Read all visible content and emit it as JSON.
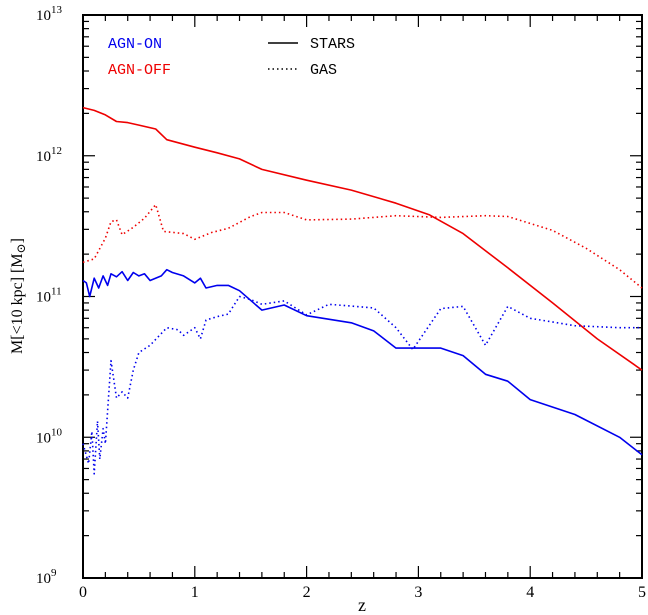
{
  "chart_data": {
    "type": "line",
    "xlabel": "z",
    "ylabel": "M[<10 kpc] [M",
    "ylabel_symbol": "⊙",
    "ylabel_close": "]",
    "xlim": [
      0,
      5
    ],
    "ylim_log10": [
      9,
      13
    ],
    "yscale": "log",
    "x_ticks": [
      "0",
      "1",
      "2",
      "3",
      "4",
      "5"
    ],
    "y_ticks": [
      {
        "exp": 9,
        "base": "10",
        "sup": "9"
      },
      {
        "exp": 10,
        "base": "10",
        "sup": "10"
      },
      {
        "exp": 11,
        "base": "10",
        "sup": "11"
      },
      {
        "exp": 12,
        "base": "10",
        "sup": "12"
      },
      {
        "exp": 13,
        "base": "10",
        "sup": "13"
      }
    ],
    "legend": {
      "placement": "top-left",
      "models": [
        {
          "name": "AGN-ON",
          "color": "#0000ee"
        },
        {
          "name": "AGN-OFF",
          "color": "#ee0000"
        }
      ],
      "styles": [
        {
          "name": "STARS",
          "dash": "solid"
        },
        {
          "name": "GAS",
          "dash": "dotted"
        }
      ]
    },
    "grid": false,
    "series": [
      {
        "model": "AGN-OFF",
        "component": "STARS",
        "color": "#ee0000",
        "dash": "solid",
        "points": [
          [
            0,
            2200000000000.0
          ],
          [
            0.1,
            2100000000000.0
          ],
          [
            0.2,
            1950000000000.0
          ],
          [
            0.3,
            1750000000000.0
          ],
          [
            0.4,
            1720000000000.0
          ],
          [
            0.5,
            1650000000000.0
          ],
          [
            0.65,
            1550000000000.0
          ],
          [
            0.75,
            1300000000000.0
          ],
          [
            1.0,
            1150000000000.0
          ],
          [
            1.2,
            1050000000000.0
          ],
          [
            1.4,
            950000000000.0
          ],
          [
            1.6,
            800000000000.0
          ],
          [
            2.0,
            670000000000.0
          ],
          [
            2.4,
            570000000000.0
          ],
          [
            2.8,
            460000000000.0
          ],
          [
            3.1,
            380000000000.0
          ],
          [
            3.4,
            280000000000.0
          ],
          [
            3.8,
            160000000000.0
          ],
          [
            4.2,
            90000000000.0
          ],
          [
            4.6,
            50000000000.0
          ],
          [
            5.0,
            30000000000.0
          ]
        ]
      },
      {
        "model": "AGN-OFF",
        "component": "GAS",
        "color": "#ee0000",
        "dash": "dotted",
        "points": [
          [
            0,
            175000000000.0
          ],
          [
            0.1,
            185000000000.0
          ],
          [
            0.2,
            260000000000.0
          ],
          [
            0.25,
            340000000000.0
          ],
          [
            0.3,
            350000000000.0
          ],
          [
            0.35,
            275000000000.0
          ],
          [
            0.45,
            310000000000.0
          ],
          [
            0.55,
            360000000000.0
          ],
          [
            0.65,
            450000000000.0
          ],
          [
            0.72,
            290000000000.0
          ],
          [
            0.9,
            280000000000.0
          ],
          [
            1.0,
            255000000000.0
          ],
          [
            1.15,
            285000000000.0
          ],
          [
            1.3,
            305000000000.0
          ],
          [
            1.5,
            370000000000.0
          ],
          [
            1.6,
            395000000000.0
          ],
          [
            1.8,
            395000000000.0
          ],
          [
            2.0,
            350000000000.0
          ],
          [
            2.4,
            355000000000.0
          ],
          [
            2.8,
            375000000000.0
          ],
          [
            3.2,
            365000000000.0
          ],
          [
            3.6,
            375000000000.0
          ],
          [
            3.8,
            370000000000.0
          ],
          [
            4.2,
            295000000000.0
          ],
          [
            4.5,
            220000000000.0
          ],
          [
            4.8,
            155000000000.0
          ],
          [
            5.0,
            115000000000.0
          ]
        ]
      },
      {
        "model": "AGN-ON",
        "component": "STARS",
        "color": "#0000ee",
        "dash": "solid",
        "points": [
          [
            0,
            130000000000.0
          ],
          [
            0.03,
            125000000000.0
          ],
          [
            0.06,
            100000000000.0
          ],
          [
            0.1,
            135000000000.0
          ],
          [
            0.14,
            115000000000.0
          ],
          [
            0.18,
            140000000000.0
          ],
          [
            0.22,
            120000000000.0
          ],
          [
            0.25,
            145000000000.0
          ],
          [
            0.3,
            138000000000.0
          ],
          [
            0.35,
            150000000000.0
          ],
          [
            0.4,
            130000000000.0
          ],
          [
            0.45,
            148000000000.0
          ],
          [
            0.5,
            140000000000.0
          ],
          [
            0.55,
            145000000000.0
          ],
          [
            0.6,
            130000000000.0
          ],
          [
            0.7,
            140000000000.0
          ],
          [
            0.75,
            155000000000.0
          ],
          [
            0.8,
            148000000000.0
          ],
          [
            0.9,
            140000000000.0
          ],
          [
            1.0,
            125000000000.0
          ],
          [
            1.05,
            135000000000.0
          ],
          [
            1.1,
            115000000000.0
          ],
          [
            1.2,
            120000000000.0
          ],
          [
            1.3,
            120000000000.0
          ],
          [
            1.4,
            110000000000.0
          ],
          [
            1.6,
            80000000000.0
          ],
          [
            1.8,
            87000000000.0
          ],
          [
            2.0,
            73000000000.0
          ],
          [
            2.4,
            65000000000.0
          ],
          [
            2.6,
            57000000000.0
          ],
          [
            2.8,
            43000000000.0
          ],
          [
            3.2,
            43000000000.0
          ],
          [
            3.4,
            38000000000.0
          ],
          [
            3.6,
            28000000000.0
          ],
          [
            3.8,
            25000000000.0
          ],
          [
            4.0,
            18500000000.0
          ],
          [
            4.4,
            14500000000.0
          ],
          [
            4.8,
            10000000000.0
          ],
          [
            5.0,
            7500000000.0
          ]
        ]
      },
      {
        "model": "AGN-ON",
        "component": "GAS",
        "color": "#0000ee",
        "dash": "dotted",
        "points": [
          [
            0,
            9000000000.0
          ],
          [
            0.05,
            6500000000.0
          ],
          [
            0.08,
            11000000000.0
          ],
          [
            0.1,
            5500000000.0
          ],
          [
            0.13,
            13000000000.0
          ],
          [
            0.15,
            7000000000.0
          ],
          [
            0.18,
            11500000000.0
          ],
          [
            0.2,
            9000000000.0
          ],
          [
            0.25,
            35000000000.0
          ],
          [
            0.3,
            19000000000.0
          ],
          [
            0.35,
            21000000000.0
          ],
          [
            0.4,
            19000000000.0
          ],
          [
            0.45,
            30000000000.0
          ],
          [
            0.5,
            40000000000.0
          ],
          [
            0.6,
            45000000000.0
          ],
          [
            0.75,
            60000000000.0
          ],
          [
            0.85,
            58000000000.0
          ],
          [
            0.9,
            53000000000.0
          ],
          [
            1.0,
            60000000000.0
          ],
          [
            1.05,
            50000000000.0
          ],
          [
            1.1,
            68000000000.0
          ],
          [
            1.2,
            72000000000.0
          ],
          [
            1.3,
            75000000000.0
          ],
          [
            1.4,
            100000000000.0
          ],
          [
            1.5,
            95000000000.0
          ],
          [
            1.6,
            88000000000.0
          ],
          [
            1.8,
            93000000000.0
          ],
          [
            2.0,
            74000000000.0
          ],
          [
            2.2,
            88000000000.0
          ],
          [
            2.6,
            83000000000.0
          ],
          [
            2.8,
            60000000000.0
          ],
          [
            2.95,
            42000000000.0
          ],
          [
            3.2,
            82000000000.0
          ],
          [
            3.4,
            85000000000.0
          ],
          [
            3.6,
            45000000000.0
          ],
          [
            3.8,
            85000000000.0
          ],
          [
            4.0,
            70000000000.0
          ],
          [
            4.4,
            62000000000.0
          ],
          [
            4.8,
            60000000000.0
          ],
          [
            5.0,
            60000000000.0
          ]
        ]
      }
    ]
  }
}
